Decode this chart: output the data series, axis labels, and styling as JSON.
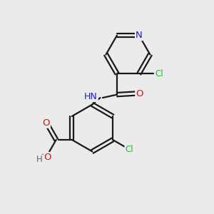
{
  "background_color": "#ebebeb",
  "bond_color": "#1a1a1a",
  "atom_colors": {
    "N": "#1a1acc",
    "O": "#cc1a1a",
    "Cl": "#2db82d",
    "C": "#1a1a1a",
    "H": "#666666"
  },
  "figsize": [
    3.0,
    3.0
  ],
  "dpi": 100
}
